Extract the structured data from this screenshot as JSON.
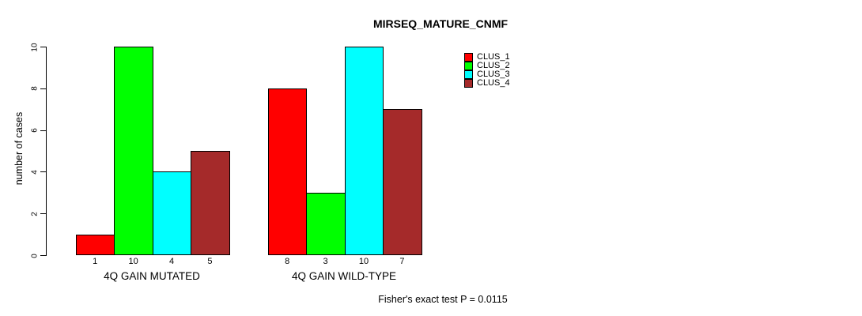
{
  "chart_data": {
    "type": "bar",
    "title": "MIRSEQ_MATURE_CNMF",
    "ylabel": "number of cases",
    "xlabel": "",
    "ylim": [
      0,
      10
    ],
    "yticks": [
      0,
      2,
      4,
      6,
      8,
      10
    ],
    "grid": false,
    "legend_position": "top-right",
    "categories": [
      "4Q GAIN MUTATED",
      "4Q GAIN WILD-TYPE"
    ],
    "series": [
      {
        "name": "CLUS_1",
        "color": "#FF0000",
        "values": [
          1,
          8
        ]
      },
      {
        "name": "CLUS_2",
        "color": "#00FF00",
        "values": [
          10,
          3
        ]
      },
      {
        "name": "CLUS_3",
        "color": "#00FFFF",
        "values": [
          4,
          10
        ]
      },
      {
        "name": "CLUS_4",
        "color": "#A52A2A",
        "values": [
          5,
          7
        ]
      }
    ],
    "bar_value_labels": [
      [
        1,
        10,
        4,
        5
      ],
      [
        8,
        3,
        10,
        7
      ]
    ],
    "annotation": "Fisher's exact test P = 0.0115"
  }
}
